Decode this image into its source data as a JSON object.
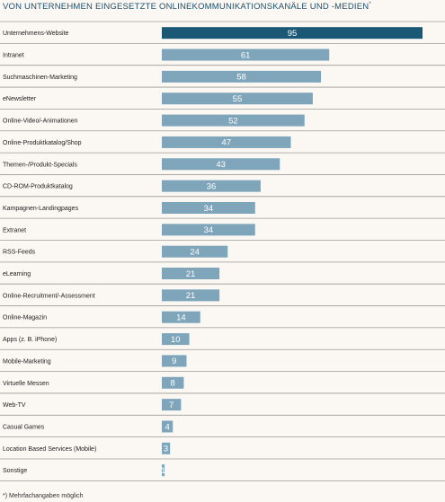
{
  "chart_data": {
    "type": "bar",
    "orientation": "horizontal",
    "title": "VON UNTERNEHMEN EINGESETZTE ONLINEKOMMUNIKATIONSKANÄLE UND -MEDIEN",
    "title_marker": "*",
    "footnote": "*) Mehrfachangaben möglich",
    "categories": [
      "Unternehmens-Website",
      "Intranet",
      "Suchmaschinen-Marketing",
      "eNewsletter",
      "Online-Video/-Animationen",
      "Online-Produktkatalog/Shop",
      "Themen-/Produkt-Specials",
      "CD-ROM-Produktkatalog",
      "Kampagnen-Landingpages",
      "Extranet",
      "RSS-Feeds",
      "eLearning",
      "Online-Recruitment/-Assessment",
      "Online-Magazin",
      "Apps (z. B. iPhone)",
      "Mobile-Marketing",
      "Virtuelle Messen",
      "Web-TV",
      "Casual Games",
      "Location Based Services (Mobile)",
      "Sonstige"
    ],
    "values": [
      95,
      61,
      58,
      55,
      52,
      47,
      43,
      36,
      34,
      34,
      24,
      21,
      21,
      14,
      10,
      9,
      8,
      7,
      4,
      3,
      1
    ],
    "xlim": [
      0,
      95
    ],
    "highlight_index": 0,
    "colors": {
      "highlight": "#1b5876",
      "bar": "#7ea5ba",
      "row_line": "#9c9a97",
      "label": "#1e1e1e",
      "value_text": "#ffffff",
      "title": "#1f4f6b",
      "background": "#fbf7f2"
    }
  }
}
